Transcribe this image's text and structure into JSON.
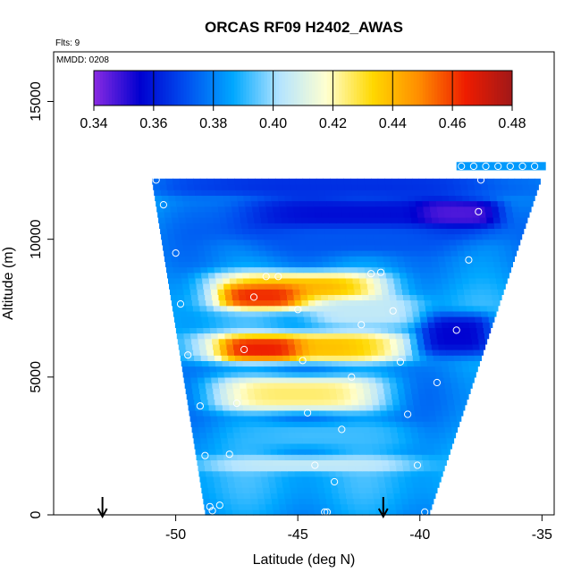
{
  "chart_data": {
    "type": "heatmap",
    "title": "ORCAS RF09 H2402_AWAS",
    "annotations": {
      "flights": "Flts: 9",
      "date": "MMDD: 0208"
    },
    "xlabel": "Latitude (deg N)",
    "ylabel": "Altitude (m)",
    "xlim": [
      -55,
      -34.5
    ],
    "ylim": [
      0,
      16800
    ],
    "xticks": [
      -50,
      -45,
      -40,
      -35
    ],
    "yticks": [
      0,
      5000,
      10000,
      15000
    ],
    "colorbar": {
      "range": [
        0.34,
        0.48
      ],
      "ticks": [
        "0.34",
        "0.36",
        "0.38",
        "0.40",
        "0.42",
        "0.44",
        "0.46",
        "0.48"
      ],
      "colors": [
        "#8a2be2",
        "#0000d0",
        "#0050f0",
        "#00a8ff",
        "#b4e4ff",
        "#ffffd0",
        "#ffd800",
        "#ff8c00",
        "#ee1c00",
        "#a01818"
      ],
      "placement": "top, inside plot"
    },
    "field_bounds": {
      "bottom_lat": [
        -48.8,
        -39.6
      ],
      "top_lat": [
        -51.0,
        -35.0
      ],
      "top_alt": 12200
    },
    "bands": [
      {
        "alt": [
          11700,
          12300
        ],
        "lat": [
          -51.0,
          -36.0
        ],
        "value": 0.365
      },
      {
        "alt": [
          10100,
          11500
        ],
        "lat": [
          -47.5,
          -37.5
        ],
        "value": 0.358
      },
      {
        "alt": [
          10600,
          11300
        ],
        "lat": [
          -39.5,
          -37.3
        ],
        "value": 0.347
      },
      {
        "alt": [
          9600,
          10400
        ],
        "lat": [
          -46.5,
          -39.0
        ],
        "value": 0.372
      },
      {
        "alt": [
          7600,
          8700
        ],
        "lat": [
          -48.0,
          -42.0
        ],
        "value": 0.44
      },
      {
        "alt": [
          7700,
          8200
        ],
        "lat": [
          -47.5,
          -45.5
        ],
        "value": 0.462
      },
      {
        "alt": [
          5700,
          6500
        ],
        "lat": [
          -48.5,
          -41.0
        ],
        "value": 0.438
      },
      {
        "alt": [
          5800,
          6300
        ],
        "lat": [
          -47.5,
          -45.5
        ],
        "value": 0.464
      },
      {
        "alt": [
          5900,
          7200
        ],
        "lat": [
          -39.5,
          -37.5
        ],
        "value": 0.356
      },
      {
        "alt": [
          3900,
          4900
        ],
        "lat": [
          -48.0,
          -42.0
        ],
        "value": 0.425
      },
      {
        "alt": [
          7000,
          7800
        ],
        "lat": [
          -44.0,
          -40.5
        ],
        "value": 0.405
      },
      {
        "alt": [
          1700,
          2000
        ],
        "lat": [
          -48.5,
          -40.5
        ],
        "value": 0.405
      },
      {
        "alt": [
          2600,
          3200
        ],
        "lat": [
          -47.0,
          -41.0
        ],
        "value": 0.392
      }
    ],
    "sample_points": [
      [
        -50.8,
        12150
      ],
      [
        -50.5,
        11250
      ],
      [
        -50.0,
        9500
      ],
      [
        -49.8,
        7650
      ],
      [
        -49.5,
        5800
      ],
      [
        -49.0,
        3950
      ],
      [
        -48.8,
        2150
      ],
      [
        -48.6,
        300
      ],
      [
        -48.5,
        150
      ],
      [
        -48.2,
        350
      ],
      [
        -47.8,
        2200
      ],
      [
        -47.5,
        4050
      ],
      [
        -47.2,
        6000
      ],
      [
        -46.8,
        7900
      ],
      [
        -46.3,
        8650
      ],
      [
        -45.8,
        8650
      ],
      [
        -45.0,
        7450
      ],
      [
        -44.8,
        5600
      ],
      [
        -44.6,
        3700
      ],
      [
        -44.3,
        1800
      ],
      [
        -43.9,
        100
      ],
      [
        -43.8,
        100
      ],
      [
        -43.5,
        1200
      ],
      [
        -43.2,
        3100
      ],
      [
        -42.8,
        5000
      ],
      [
        -42.4,
        6900
      ],
      [
        -42.0,
        8750
      ],
      [
        -41.6,
        8800
      ],
      [
        -41.1,
        7400
      ],
      [
        -40.8,
        5550
      ],
      [
        -40.5,
        3650
      ],
      [
        -40.1,
        1800
      ],
      [
        -39.8,
        100
      ],
      [
        -39.3,
        4800
      ],
      [
        -38.5,
        6700
      ],
      [
        -38.0,
        9250
      ],
      [
        -37.6,
        11000
      ],
      [
        -37.5,
        12150
      ],
      [
        -38.3,
        12650
      ],
      [
        -37.8,
        12650
      ],
      [
        -37.3,
        12650
      ],
      [
        -36.8,
        12650
      ],
      [
        -36.3,
        12650
      ],
      [
        -35.8,
        12650
      ],
      [
        -35.3,
        12650
      ]
    ],
    "arrows_lat": [
      -53.0,
      -41.5
    ],
    "grid": false
  }
}
